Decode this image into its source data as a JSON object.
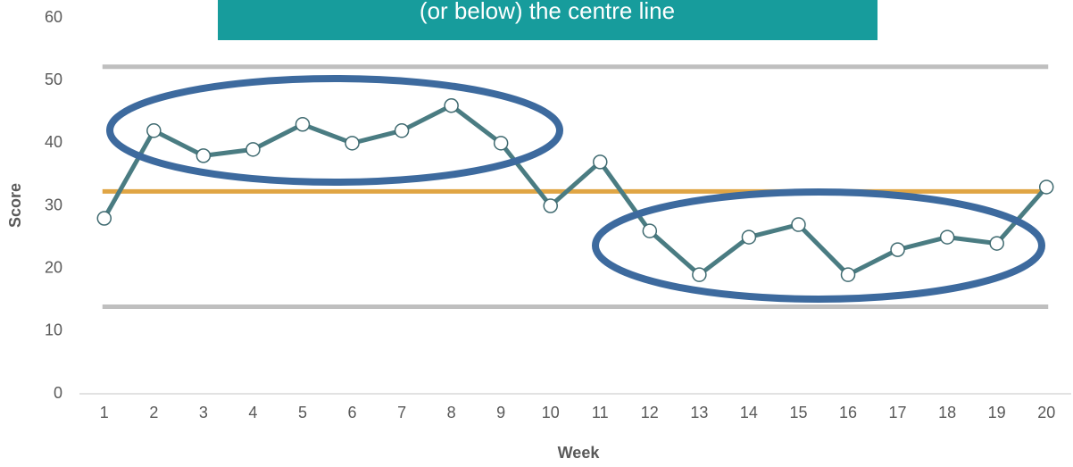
{
  "chart_data": {
    "type": "line",
    "title": "(or below) the centre line",
    "x_label": "Week",
    "y_label": "Score",
    "categories": [
      "1",
      "2",
      "3",
      "4",
      "5",
      "6",
      "7",
      "8",
      "9",
      "10",
      "11",
      "12",
      "13",
      "14",
      "15",
      "16",
      "17",
      "18",
      "19",
      "20"
    ],
    "series": [
      {
        "name": "Score",
        "color": "#4a7c82",
        "values": [
          28,
          42,
          38,
          39,
          43,
          40,
          42,
          46,
          40,
          30,
          37,
          26,
          19,
          25,
          27,
          19,
          23,
          25,
          24,
          33
        ]
      }
    ],
    "reference_lines": [
      {
        "value": 52.2,
        "color": "#bfbfbf"
      },
      {
        "value": 32.3,
        "color": "#e0a544"
      },
      {
        "value": 13.9,
        "color": "#bfbfbf"
      }
    ],
    "ylim": [
      0,
      60
    ],
    "yticks": [
      0,
      10,
      20,
      30,
      40,
      50,
      60
    ],
    "grid": false
  }
}
